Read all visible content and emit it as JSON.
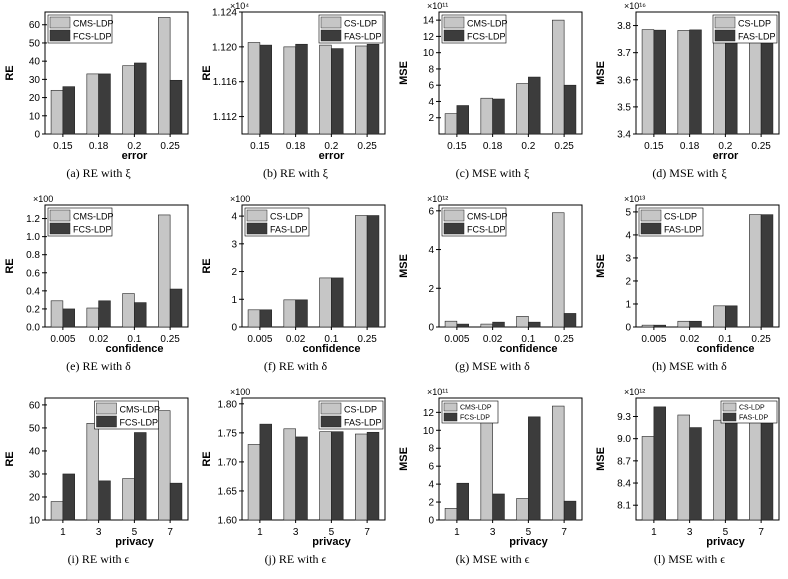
{
  "colors": {
    "light": "#c6c6c6",
    "dark": "#3c3c3c",
    "axis": "#000000"
  },
  "chart_data": [
    {
      "caption": "(a)  RE with ξ",
      "type": "bar",
      "categories": [
        "0.15",
        "0.18",
        "0.2",
        "0.25"
      ],
      "xlabel": "error",
      "ylabel": "RE",
      "multiplier": "",
      "ylim": [
        0,
        67
      ],
      "yticks": [
        "0",
        "10",
        "20",
        "30",
        "40",
        "50",
        "60"
      ],
      "legend_position": "top-left",
      "series": [
        {
          "name": "CMS-LDP",
          "values": [
            24,
            33,
            37.5,
            64
          ]
        },
        {
          "name": "FCS-LDP",
          "values": [
            26,
            33,
            39,
            29.5
          ]
        }
      ]
    },
    {
      "caption": "(b)  RE with ξ",
      "type": "bar",
      "categories": [
        "0.15",
        "0.18",
        "0.2",
        "0.25"
      ],
      "xlabel": "error",
      "ylabel": "RE",
      "multiplier": "×10⁴",
      "ylim": [
        1.11,
        1.124
      ],
      "yticks": [
        "1.112",
        "1.116",
        "1.120",
        "1.124"
      ],
      "legend_position": "top-right",
      "series": [
        {
          "name": "CS-LDP",
          "values": [
            1.1205,
            1.12,
            1.1202,
            1.1201
          ]
        },
        {
          "name": "FAS-LDP",
          "values": [
            1.1202,
            1.1203,
            1.1198,
            1.1203
          ]
        }
      ]
    },
    {
      "caption": "(c)  MSE with ξ",
      "type": "bar",
      "categories": [
        "0.15",
        "0.18",
        "0.2",
        "0.25"
      ],
      "xlabel": "",
      "ylabel": "MSE",
      "multiplier": "×10¹¹",
      "ylim": [
        0,
        15
      ],
      "yticks": [
        "2",
        "4",
        "6",
        "8",
        "10",
        "12",
        "14"
      ],
      "legend_position": "top-left",
      "series": [
        {
          "name": "CMS-LDP",
          "values": [
            2.5,
            4.4,
            6.2,
            14.0
          ]
        },
        {
          "name": "FCS-LDP",
          "values": [
            3.5,
            4.3,
            7.0,
            6.0
          ]
        }
      ]
    },
    {
      "caption": "(d)  MSE with ξ",
      "type": "bar",
      "categories": [
        "0.15",
        "0.18",
        "0.2",
        "0.25"
      ],
      "xlabel": "error",
      "ylabel": "MSE",
      "multiplier": "×10¹⁶",
      "ylim": [
        3.4,
        3.85
      ],
      "yticks": [
        "3.4",
        "3.5",
        "3.6",
        "3.7",
        "3.8"
      ],
      "legend_position": "top-right",
      "series": [
        {
          "name": "CS-LDP",
          "values": [
            3.785,
            3.782,
            3.782,
            3.785
          ]
        },
        {
          "name": "FAS-LDP",
          "values": [
            3.783,
            3.784,
            3.782,
            3.783
          ]
        }
      ]
    },
    {
      "caption": "(e)  RE with δ",
      "type": "bar",
      "categories": [
        "0.005",
        "0.02",
        "0.1",
        "0.25"
      ],
      "xlabel": "confidence",
      "ylabel": "RE",
      "multiplier": "×100",
      "ylim": [
        0,
        1.35
      ],
      "yticks": [
        "0.0",
        "0.2",
        "0.4",
        "0.6",
        "0.8",
        "1.0",
        "1.2"
      ],
      "legend_position": "top-left",
      "series": [
        {
          "name": "CMS-LDP",
          "values": [
            0.29,
            0.21,
            0.37,
            1.24
          ]
        },
        {
          "name": "FCS-LDP",
          "values": [
            0.2,
            0.29,
            0.27,
            0.42
          ]
        }
      ]
    },
    {
      "caption": "(f)  RE with δ",
      "type": "bar",
      "categories": [
        "0.005",
        "0.02",
        "0.1",
        "0.25"
      ],
      "xlabel": "confidence",
      "ylabel": "RE",
      "multiplier": "×100",
      "ylim": [
        0,
        4.4
      ],
      "yticks": [
        "0",
        "1",
        "2",
        "3",
        "4"
      ],
      "legend_position": "top-left",
      "series": [
        {
          "name": "CS-LDP",
          "values": [
            0.62,
            0.98,
            1.77,
            4.02
          ]
        },
        {
          "name": "FAS-LDP",
          "values": [
            0.62,
            0.98,
            1.77,
            4.02
          ]
        }
      ]
    },
    {
      "caption": "(g)  MSE with δ",
      "type": "bar",
      "categories": [
        "0.005",
        "0.02",
        "0.1",
        "0.25"
      ],
      "xlabel": "confidence",
      "ylabel": "MSE",
      "multiplier": "×10¹²",
      "ylim": [
        0,
        6.3
      ],
      "yticks": [
        "0",
        "2",
        "4",
        "6"
      ],
      "legend_position": "top-left",
      "series": [
        {
          "name": "CMS-LDP",
          "values": [
            0.3,
            0.15,
            0.55,
            5.9
          ]
        },
        {
          "name": "FCS-LDP",
          "values": [
            0.15,
            0.25,
            0.25,
            0.7
          ]
        }
      ]
    },
    {
      "caption": "(h)  MSE with δ",
      "type": "bar",
      "categories": [
        "0.005",
        "0.02",
        "0.1",
        "0.25"
      ],
      "xlabel": "confidence",
      "ylabel": "MSE",
      "multiplier": "×10¹³",
      "ylim": [
        0,
        5.3
      ],
      "yticks": [
        "0",
        "1",
        "2",
        "3",
        "4",
        "5"
      ],
      "legend_position": "top-left",
      "series": [
        {
          "name": "CS-LDP",
          "values": [
            0.08,
            0.25,
            0.92,
            4.88
          ]
        },
        {
          "name": "FAS-LDP",
          "values": [
            0.08,
            0.25,
            0.92,
            4.88
          ]
        }
      ]
    },
    {
      "caption": "(i)  RE with ϵ",
      "type": "bar",
      "categories": [
        "1",
        "3",
        "5",
        "7"
      ],
      "xlabel": "privacy",
      "ylabel": "RE",
      "multiplier": "",
      "ylim": [
        10,
        63
      ],
      "yticks": [
        "10",
        "20",
        "30",
        "40",
        "50",
        "60"
      ],
      "legend_position": "top-center",
      "series": [
        {
          "name": "CMS-LDP",
          "values": [
            18,
            52,
            28,
            57.5
          ]
        },
        {
          "name": "FCS-LDP",
          "values": [
            30,
            27,
            48,
            26
          ]
        }
      ]
    },
    {
      "caption": "(j)  RE with ϵ",
      "type": "bar",
      "categories": [
        "1",
        "3",
        "5",
        "7"
      ],
      "xlabel": "privacy",
      "ylabel": "RE",
      "multiplier": "×100",
      "ylim": [
        1.6,
        1.81
      ],
      "yticks": [
        "1.60",
        "1.65",
        "1.70",
        "1.75",
        "1.80"
      ],
      "legend_position": "top-right",
      "series": [
        {
          "name": "CS-LDP",
          "values": [
            1.73,
            1.757,
            1.752,
            1.748
          ]
        },
        {
          "name": "FAS-LDP",
          "values": [
            1.765,
            1.743,
            1.752,
            1.751
          ]
        }
      ]
    },
    {
      "caption": "(k)  MSE with ϵ",
      "type": "bar",
      "categories": [
        "1",
        "3",
        "5",
        "7"
      ],
      "xlabel": "privacy",
      "ylabel": "MSE",
      "multiplier": "×10¹¹",
      "ylim": [
        0,
        13.6
      ],
      "yticks": [
        "0",
        "2",
        "4",
        "6",
        "8",
        "10",
        "12"
      ],
      "legend_position": "top-left",
      "series": [
        {
          "name": "CMS-LDP",
          "values": [
            1.3,
            12.0,
            2.4,
            12.7
          ]
        },
        {
          "name": "FCS-LDP",
          "values": [
            4.1,
            2.9,
            11.5,
            2.1
          ]
        }
      ]
    },
    {
      "caption": "(l)  MSE with ϵ",
      "type": "bar",
      "categories": [
        "1",
        "3",
        "5",
        "7"
      ],
      "xlabel": "privacy",
      "ylabel": "MSE",
      "multiplier": "×10¹²",
      "ylim": [
        7.9,
        9.55
      ],
      "yticks": [
        "8.1",
        "8.4",
        "8.7",
        "9.0",
        "9.3"
      ],
      "legend_position": "top-right",
      "series": [
        {
          "name": "CS-LDP",
          "values": [
            9.03,
            9.32,
            9.25,
            9.22
          ]
        },
        {
          "name": "FAS-LDP",
          "values": [
            9.43,
            9.15,
            9.25,
            9.25
          ]
        }
      ]
    }
  ]
}
